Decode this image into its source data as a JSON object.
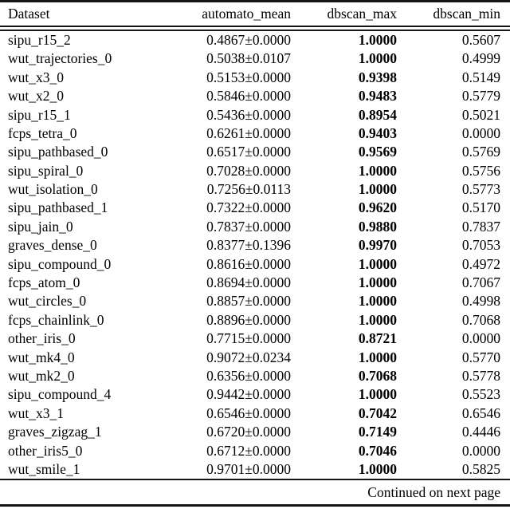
{
  "colors": {
    "background": "#ffffff",
    "text": "#000000",
    "rule": "#151515"
  },
  "table": {
    "columns": [
      {
        "key": "dataset",
        "label": "Dataset"
      },
      {
        "key": "automato_mean",
        "label": "automato_mean"
      },
      {
        "key": "dbscan_max",
        "label": "dbscan_max"
      },
      {
        "key": "dbscan_min",
        "label": "dbscan_min"
      }
    ],
    "rows": [
      {
        "dataset": "sipu_r15_2",
        "automato_mean": "0.4867±0.0000",
        "dbscan_max": "1.0000",
        "dbscan_min": "0.5607"
      },
      {
        "dataset": "wut_trajectories_0",
        "automato_mean": "0.5038±0.0107",
        "dbscan_max": "1.0000",
        "dbscan_min": "0.4999"
      },
      {
        "dataset": "wut_x3_0",
        "automato_mean": "0.5153±0.0000",
        "dbscan_max": "0.9398",
        "dbscan_min": "0.5149"
      },
      {
        "dataset": "wut_x2_0",
        "automato_mean": "0.5846±0.0000",
        "dbscan_max": "0.9483",
        "dbscan_min": "0.5779"
      },
      {
        "dataset": "sipu_r15_1",
        "automato_mean": "0.5436±0.0000",
        "dbscan_max": "0.8954",
        "dbscan_min": "0.5021"
      },
      {
        "dataset": "fcps_tetra_0",
        "automato_mean": "0.6261±0.0000",
        "dbscan_max": "0.9403",
        "dbscan_min": "0.0000"
      },
      {
        "dataset": "sipu_pathbased_0",
        "automato_mean": "0.6517±0.0000",
        "dbscan_max": "0.9569",
        "dbscan_min": "0.5769"
      },
      {
        "dataset": "sipu_spiral_0",
        "automato_mean": "0.7028±0.0000",
        "dbscan_max": "1.0000",
        "dbscan_min": "0.5756"
      },
      {
        "dataset": "wut_isolation_0",
        "automato_mean": "0.7256±0.0113",
        "dbscan_max": "1.0000",
        "dbscan_min": "0.5773"
      },
      {
        "dataset": "sipu_pathbased_1",
        "automato_mean": "0.7322±0.0000",
        "dbscan_max": "0.9620",
        "dbscan_min": "0.5170"
      },
      {
        "dataset": "sipu_jain_0",
        "automato_mean": "0.7837±0.0000",
        "dbscan_max": "0.9880",
        "dbscan_min": "0.7837"
      },
      {
        "dataset": "graves_dense_0",
        "automato_mean": "0.8377±0.1396",
        "dbscan_max": "0.9970",
        "dbscan_min": "0.7053"
      },
      {
        "dataset": "sipu_compound_0",
        "automato_mean": "0.8616±0.0000",
        "dbscan_max": "1.0000",
        "dbscan_min": "0.4972"
      },
      {
        "dataset": "fcps_atom_0",
        "automato_mean": "0.8694±0.0000",
        "dbscan_max": "1.0000",
        "dbscan_min": "0.7067"
      },
      {
        "dataset": "wut_circles_0",
        "automato_mean": "0.8857±0.0000",
        "dbscan_max": "1.0000",
        "dbscan_min": "0.4998"
      },
      {
        "dataset": "fcps_chainlink_0",
        "automato_mean": "0.8896±0.0000",
        "dbscan_max": "1.0000",
        "dbscan_min": "0.7068"
      },
      {
        "dataset": "other_iris_0",
        "automato_mean": "0.7715±0.0000",
        "dbscan_max": "0.8721",
        "dbscan_min": "0.0000"
      },
      {
        "dataset": "wut_mk4_0",
        "automato_mean": "0.9072±0.0234",
        "dbscan_max": "1.0000",
        "dbscan_min": "0.5770"
      },
      {
        "dataset": "wut_mk2_0",
        "automato_mean": "0.6356±0.0000",
        "dbscan_max": "0.7068",
        "dbscan_min": "0.5778"
      },
      {
        "dataset": "sipu_compound_4",
        "automato_mean": "0.9442±0.0000",
        "dbscan_max": "1.0000",
        "dbscan_min": "0.5523"
      },
      {
        "dataset": "wut_x3_1",
        "automato_mean": "0.6546±0.0000",
        "dbscan_max": "0.7042",
        "dbscan_min": "0.6546"
      },
      {
        "dataset": "graves_zigzag_1",
        "automato_mean": "0.6720±0.0000",
        "dbscan_max": "0.7149",
        "dbscan_min": "0.4446"
      },
      {
        "dataset": "other_iris5_0",
        "automato_mean": "0.6712±0.0000",
        "dbscan_max": "0.7046",
        "dbscan_min": "0.0000"
      },
      {
        "dataset": "wut_smile_1",
        "automato_mean": "0.9701±0.0000",
        "dbscan_max": "1.0000",
        "dbscan_min": "0.5825"
      }
    ]
  },
  "footer": {
    "text": "Continued on next page"
  }
}
